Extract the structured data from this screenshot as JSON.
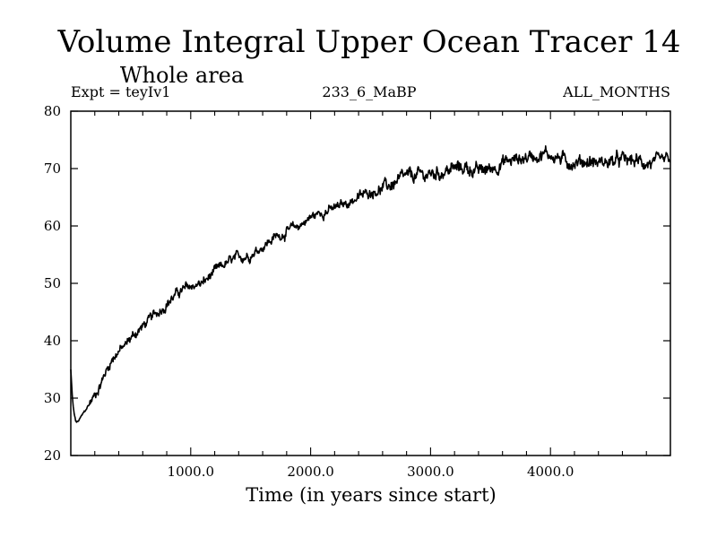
{
  "chart_data": {
    "type": "line",
    "title": "Volume Integral Upper Ocean Tracer 14",
    "subtitle": "Whole area",
    "annotations": {
      "left": "Expt = teyIv1",
      "center": "233_6_MaBP",
      "right": "ALL_MONTHS"
    },
    "xlabel": "Time (in years since start)",
    "ylabel": "",
    "xlim": [
      0,
      5000
    ],
    "ylim": [
      20,
      80
    ],
    "xticks": [
      1000,
      2000,
      3000,
      4000
    ],
    "xtick_labels": [
      "1000.0",
      "2000.0",
      "3000.0",
      "4000.0"
    ],
    "yticks": [
      20,
      30,
      40,
      50,
      60,
      70,
      80
    ],
    "ytick_labels": [
      "20",
      "30",
      "40",
      "50",
      "60",
      "70",
      "80"
    ],
    "grid": false,
    "line_color": "#000000",
    "series": [
      {
        "name": "Tracer 14",
        "x": [
          0,
          10,
          20,
          30,
          40,
          50,
          60,
          80,
          100,
          150,
          200,
          250,
          300,
          350,
          400,
          450,
          500,
          600,
          700,
          800,
          900,
          1000,
          1100,
          1200,
          1300,
          1400,
          1500,
          1600,
          1700,
          1800,
          1900,
          2000,
          2100,
          2200,
          2300,
          2400,
          2500,
          2600,
          2700,
          2800,
          2900,
          3000,
          3100,
          3200,
          3300,
          3400,
          3500,
          3600,
          3700,
          3800,
          3900,
          4000,
          4100,
          4200,
          4300,
          4400,
          4500,
          4600,
          4700,
          4800,
          4900,
          5000
        ],
        "values": [
          35,
          31,
          28.5,
          27,
          26,
          25.8,
          25.9,
          26.5,
          27.2,
          28.8,
          30.5,
          32.5,
          35,
          37,
          38.2,
          39,
          40.5,
          42.5,
          44.5,
          46.5,
          48.5,
          49.5,
          50,
          52,
          53.5,
          54.5,
          55,
          56.5,
          58,
          59,
          60,
          61.5,
          62.5,
          63,
          64,
          65,
          66,
          66.5,
          67.5,
          68.5,
          68.8,
          69,
          69.5,
          70,
          70.2,
          69.5,
          70,
          71,
          71.5,
          72,
          72.5,
          72.5,
          71.5,
          71,
          71.3,
          71,
          71.2,
          71.5,
          71.3,
          71,
          70.8,
          71.6
        ]
      }
    ]
  }
}
